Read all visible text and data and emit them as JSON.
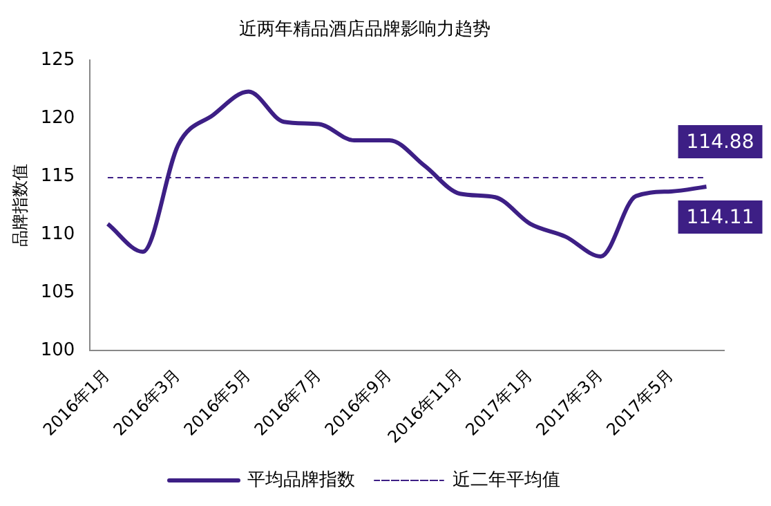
{
  "chart_data": {
    "type": "line",
    "title": "近两年精品酒店品牌影响力趋势",
    "ylabel": "品牌指数值",
    "categories": [
      "2016年1月",
      null,
      "2016年3月",
      null,
      "2016年5月",
      null,
      "2016年7月",
      null,
      "2016年9月",
      null,
      "2016年11月",
      null,
      "2017年1月",
      null,
      "2017年3月",
      null,
      "2017年5月",
      null
    ],
    "series": [
      {
        "name": "平均品牌指数",
        "color": "#3d1f85",
        "values": [
          110.9,
          108.5,
          117.7,
          120.3,
          122.3,
          119.7,
          119.5,
          118.1,
          118.1,
          115.9,
          113.5,
          113.2,
          110.9,
          109.8,
          108.1,
          113.3,
          113.7,
          114.11
        ],
        "value_labels": [
          null,
          null,
          null,
          null,
          null,
          null,
          null,
          null,
          null,
          null,
          null,
          null,
          null,
          null,
          null,
          null,
          null,
          "114.11"
        ]
      },
      {
        "name": "近二年平均值",
        "color": "#3d1f85",
        "line_style": "dashed",
        "values": [
          114.88,
          114.88,
          114.88,
          114.88,
          114.88,
          114.88,
          114.88,
          114.88,
          114.88,
          114.88,
          114.88,
          114.88,
          114.88,
          114.88,
          114.88,
          114.88,
          114.88,
          114.88
        ],
        "value_labels": [
          null,
          null,
          null,
          null,
          null,
          null,
          null,
          null,
          null,
          null,
          null,
          null,
          null,
          null,
          null,
          null,
          null,
          "114.88"
        ]
      }
    ],
    "ylim": [
      100,
      125
    ],
    "yticks": [
      100,
      105,
      110,
      115,
      120,
      125
    ],
    "grid": false,
    "legend": "bottom",
    "marker": "none"
  }
}
